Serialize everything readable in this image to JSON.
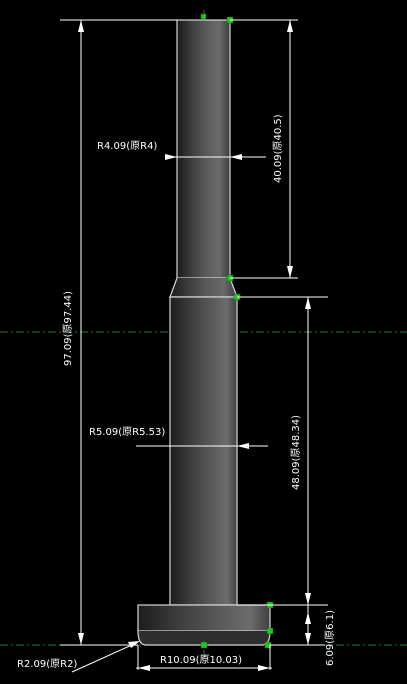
{
  "drawing": {
    "background": "#000000",
    "part_color": "#3a3a3a",
    "grip_color": "#1ec81e",
    "centerline_color": "#1e7a3a",
    "annotations": {
      "radius_top": "R4.09(原R4)",
      "length_top": "40.09(原40.5)",
      "total_length": "97.09(原97.44)",
      "radius_middle": "R5.09(原R5.53)",
      "length_middle": "48.09(原48.34)",
      "base_height": "6.09(原6.1)",
      "radius_base": "R10.09(原10.03)",
      "fillet_radius": "R2.09(原R2)"
    }
  }
}
